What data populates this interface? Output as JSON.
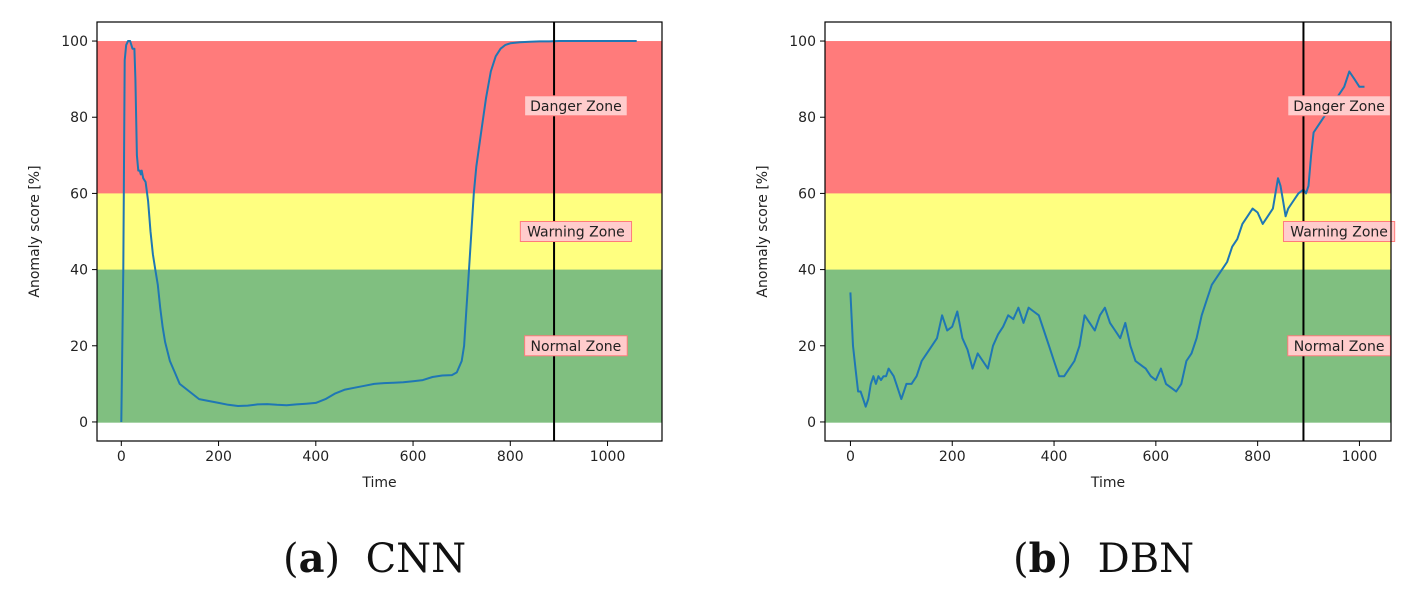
{
  "zone_colors": {
    "danger": "#ff7b7b",
    "warning": "#ffff80",
    "normal": "#80bf80",
    "line": "#1f77b4",
    "label_bg": "#ffcccc",
    "label_border": "#ff7b7b"
  },
  "chart_data": [
    {
      "type": "line",
      "caption_letter": "a",
      "caption_text": "CNN",
      "xlabel": "Time",
      "ylabel": "Anomaly score [%]",
      "xlim": [
        -50,
        1112
      ],
      "ylim": [
        -5,
        105
      ],
      "xticks": [
        0,
        200,
        400,
        600,
        800,
        1000
      ],
      "yticks": [
        0,
        20,
        40,
        60,
        80,
        100
      ],
      "vline_x": 890,
      "zones": [
        {
          "label": "Danger Zone",
          "from": 60,
          "to": 100,
          "label_y": 83
        },
        {
          "label": "Warning Zone",
          "from": 40,
          "to": 60,
          "label_y": 50
        },
        {
          "label": "Normal Zone",
          "from": 0,
          "to": 40,
          "label_y": 20
        }
      ],
      "label_x": 935,
      "series": [
        {
          "name": "CNN",
          "x": [
            0,
            4,
            7,
            10,
            14,
            18,
            23,
            27,
            29,
            32,
            35,
            38,
            40,
            42,
            45,
            50,
            55,
            60,
            65,
            70,
            75,
            80,
            85,
            90,
            100,
            110,
            120,
            140,
            160,
            180,
            200,
            220,
            240,
            260,
            280,
            300,
            320,
            340,
            360,
            380,
            400,
            420,
            440,
            460,
            480,
            500,
            520,
            540,
            560,
            580,
            600,
            620,
            640,
            660,
            680,
            690,
            700,
            705,
            710,
            715,
            720,
            725,
            730,
            740,
            750,
            760,
            770,
            780,
            790,
            800,
            820,
            840,
            860,
            880,
            900,
            950,
            1000,
            1060
          ],
          "y": [
            0,
            40,
            95,
            99,
            100,
            100,
            98,
            98,
            90,
            70,
            66,
            66,
            65,
            66,
            64,
            63,
            58,
            50,
            44,
            40,
            36,
            30,
            25,
            21,
            16,
            13,
            10,
            8,
            6,
            5.5,
            5,
            4.5,
            4.2,
            4.3,
            4.6,
            4.7,
            4.5,
            4.4,
            4.6,
            4.8,
            5,
            6,
            7.5,
            8.5,
            9,
            9.5,
            10,
            10.2,
            10.3,
            10.4,
            10.7,
            11,
            11.8,
            12.2,
            12.3,
            13,
            16,
            20,
            30,
            40,
            50,
            60,
            67,
            76,
            85,
            92,
            96,
            98,
            99,
            99.4,
            99.7,
            99.8,
            99.9,
            99.9,
            100,
            100,
            100,
            100
          ]
        }
      ]
    },
    {
      "type": "line",
      "caption_letter": "b",
      "caption_text": "DBN",
      "xlabel": "Time",
      "ylabel": "Anomaly score [%]",
      "xlim": [
        -50,
        1062
      ],
      "ylim": [
        -5,
        105
      ],
      "xticks": [
        0,
        200,
        400,
        600,
        800,
        1000
      ],
      "yticks": [
        0,
        20,
        40,
        60,
        80,
        100
      ],
      "vline_x": 890,
      "zones": [
        {
          "label": "Danger Zone",
          "from": 60,
          "to": 100,
          "label_y": 83
        },
        {
          "label": "Warning Zone",
          "from": 40,
          "to": 60,
          "label_y": 50
        },
        {
          "label": "Normal Zone",
          "from": 0,
          "to": 40,
          "label_y": 20
        }
      ],
      "label_x": 960,
      "series": [
        {
          "name": "DBN",
          "x": [
            0,
            5,
            10,
            15,
            20,
            25,
            30,
            35,
            40,
            45,
            50,
            55,
            60,
            65,
            70,
            75,
            80,
            85,
            90,
            95,
            100,
            105,
            110,
            120,
            130,
            140,
            150,
            160,
            170,
            180,
            190,
            200,
            210,
            220,
            230,
            240,
            250,
            260,
            270,
            280,
            290,
            300,
            310,
            320,
            330,
            340,
            350,
            360,
            370,
            380,
            390,
            400,
            410,
            420,
            430,
            440,
            450,
            460,
            470,
            480,
            490,
            500,
            510,
            520,
            530,
            540,
            550,
            560,
            570,
            580,
            590,
            600,
            610,
            620,
            630,
            640,
            650,
            660,
            670,
            680,
            690,
            700,
            710,
            720,
            730,
            740,
            750,
            760,
            770,
            780,
            790,
            800,
            810,
            820,
            830,
            840,
            845,
            850,
            855,
            860,
            870,
            880,
            890,
            895,
            900,
            905,
            910,
            920,
            930,
            940,
            950,
            960,
            970,
            980,
            990,
            1000,
            1010
          ],
          "y": [
            34,
            20,
            14,
            8,
            8,
            6,
            4,
            6,
            10,
            12,
            10,
            12,
            11,
            12,
            12,
            14,
            13,
            12,
            10,
            8,
            6,
            8,
            10,
            10,
            12,
            16,
            18,
            20,
            22,
            28,
            24,
            25,
            29,
            22,
            19,
            14,
            18,
            16,
            14,
            20,
            23,
            25,
            28,
            27,
            30,
            26,
            30,
            29,
            28,
            24,
            20,
            16,
            12,
            12,
            14,
            16,
            20,
            28,
            26,
            24,
            28,
            30,
            26,
            24,
            22,
            26,
            20,
            16,
            15,
            14,
            12,
            11,
            14,
            10,
            9,
            8,
            10,
            16,
            18,
            22,
            28,
            32,
            36,
            38,
            40,
            42,
            46,
            48,
            52,
            54,
            56,
            55,
            52,
            54,
            56,
            64,
            62,
            58,
            54,
            56,
            58,
            60,
            61,
            60,
            62,
            70,
            76,
            78,
            80,
            82,
            84,
            86,
            88,
            92,
            90,
            88,
            88
          ]
        }
      ]
    }
  ]
}
